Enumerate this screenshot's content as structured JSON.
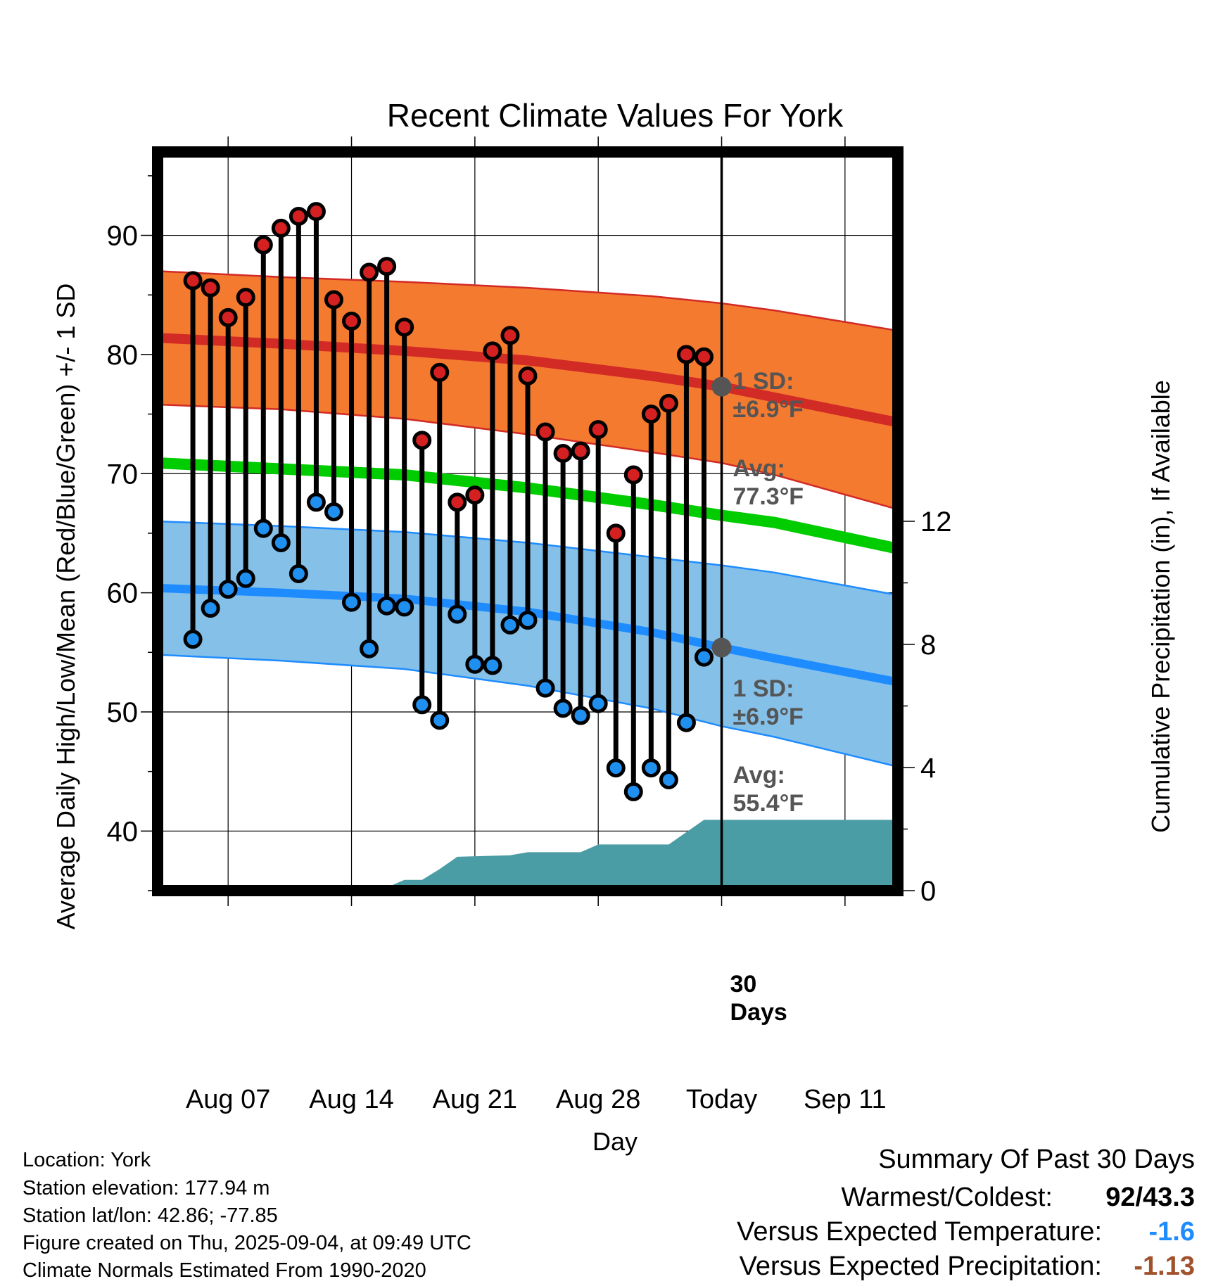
{
  "chart_data": {
    "type": "line",
    "title": "Recent Climate Values For York",
    "xlabel": "Day",
    "ylabel": "Average Daily High/Low/Mean (Red/Blue/Green) +/- 1 SD",
    "ylabel_right": "Cumulative Precipitation (in), If Available",
    "ylim": [
      35,
      97
    ],
    "ylim_right": [
      0,
      24
    ],
    "y_ticks": [
      40,
      50,
      60,
      70,
      80,
      90
    ],
    "y_ticks_right": [
      0,
      4,
      8,
      12
    ],
    "x_range": [
      "Aug 03",
      "Sep 14"
    ],
    "x_ticks": [
      "Aug 07",
      "Aug 14",
      "Aug 21",
      "Aug 28",
      "Today",
      "Sep 11"
    ],
    "today": "Sep 04",
    "grid": true,
    "dates": [
      "Aug 05",
      "Aug 06",
      "Aug 07",
      "Aug 08",
      "Aug 09",
      "Aug 10",
      "Aug 11",
      "Aug 12",
      "Aug 13",
      "Aug 14",
      "Aug 15",
      "Aug 16",
      "Aug 17",
      "Aug 18",
      "Aug 19",
      "Aug 20",
      "Aug 21",
      "Aug 22",
      "Aug 23",
      "Aug 24",
      "Aug 25",
      "Aug 26",
      "Aug 27",
      "Aug 28",
      "Aug 29",
      "Aug 30",
      "Aug 31",
      "Sep 01",
      "Sep 02",
      "Sep 03"
    ],
    "highs": [
      86.2,
      85.6,
      83.1,
      84.8,
      89.2,
      90.6,
      91.6,
      92.0,
      84.6,
      82.8,
      86.9,
      87.4,
      82.3,
      72.8,
      78.5,
      67.6,
      68.2,
      80.3,
      81.6,
      78.2,
      73.5,
      71.7,
      71.9,
      73.7,
      65.0,
      69.9,
      75.0,
      75.9,
      80.0,
      79.8
    ],
    "lows": [
      56.1,
      58.7,
      60.3,
      61.2,
      65.4,
      64.2,
      61.6,
      67.6,
      66.8,
      59.2,
      55.3,
      58.9,
      58.8,
      50.6,
      49.3,
      58.2,
      54.0,
      53.9,
      57.3,
      57.7,
      52.0,
      50.3,
      49.7,
      50.7,
      45.3,
      43.3,
      45.3,
      44.3,
      49.1,
      54.6
    ],
    "normals": {
      "x": [
        "Aug 03",
        "Aug 10",
        "Aug 17",
        "Aug 24",
        "Aug 31",
        "Sep 04",
        "Sep 07",
        "Sep 14"
      ],
      "high_avg": [
        81.4,
        80.9,
        80.3,
        79.5,
        78.2,
        77.3,
        76.4,
        74.3
      ],
      "high_sd_upper": [
        87.0,
        86.5,
        86.1,
        85.6,
        84.9,
        84.3,
        83.7,
        82.0
      ],
      "high_sd_lower": [
        75.8,
        75.4,
        74.6,
        73.3,
        71.8,
        70.9,
        69.9,
        67.0
      ],
      "mean_avg": [
        70.9,
        70.4,
        69.9,
        68.8,
        67.4,
        66.5,
        65.9,
        63.7
      ],
      "low_avg": [
        60.4,
        60.0,
        59.5,
        58.4,
        56.7,
        55.4,
        54.5,
        52.5
      ],
      "low_sd_upper": [
        66.0,
        65.6,
        65.1,
        64.2,
        63.0,
        62.3,
        61.7,
        59.8
      ],
      "low_sd_lower": [
        54.8,
        54.3,
        53.6,
        52.2,
        50.3,
        48.8,
        47.9,
        45.4
      ]
    },
    "precip_cumulative": {
      "x": [
        "Aug 03",
        "Aug 12",
        "Aug 13",
        "Aug 16",
        "Aug 17",
        "Aug 18",
        "Aug 19",
        "Aug 20",
        "Aug 23",
        "Aug 24",
        "Aug 27",
        "Aug 28",
        "Sep 01",
        "Sep 03",
        "Sep 14"
      ],
      "values": [
        0,
        0,
        0.1,
        0.1,
        0.35,
        0.35,
        0.7,
        1.1,
        1.15,
        1.25,
        1.25,
        1.5,
        1.5,
        2.3,
        2.3
      ]
    },
    "colors": {
      "high_band": "#f47a30",
      "high_line": "#d22a25",
      "mean_line": "#00cc00",
      "low_band": "#85c0e8",
      "low_line": "#1e8cff",
      "precip": "#4a9da5",
      "high_marker": "#d42020",
      "low_marker": "#2090f0",
      "today_marker": "#555555",
      "annotation_text": "#555555"
    },
    "annotations": {
      "high_sd": [
        "1 SD:",
        "±6.9°F"
      ],
      "high_avg": [
        "Avg:",
        "77.3°F"
      ],
      "low_sd": [
        "1 SD:",
        "±6.9°F"
      ],
      "low_avg": [
        "Avg:",
        "55.4°F"
      ],
      "precip_days": [
        "30",
        "Days"
      ]
    }
  },
  "footer": {
    "location": "Location: York",
    "elevation": "Station elevation: 177.94 m",
    "latlon": "Station lat/lon: 42.86; -77.85",
    "created": "Figure created on Thu, 2025-09-04, at 09:49 UTC",
    "normals": "Climate Normals Estimated From 1990-2020"
  },
  "summary": {
    "title": "Summary Of Past 30 Days",
    "warm_cold_label": "Warmest/Coldest:",
    "warm_cold_value": "92/43.3",
    "temp_label": "Versus Expected Temperature:",
    "temp_value": "-1.6",
    "temp_color": "#1e8cff",
    "precip_label": "Versus Expected Precipitation:",
    "precip_value": "-1.13",
    "precip_color": "#a0522d"
  }
}
